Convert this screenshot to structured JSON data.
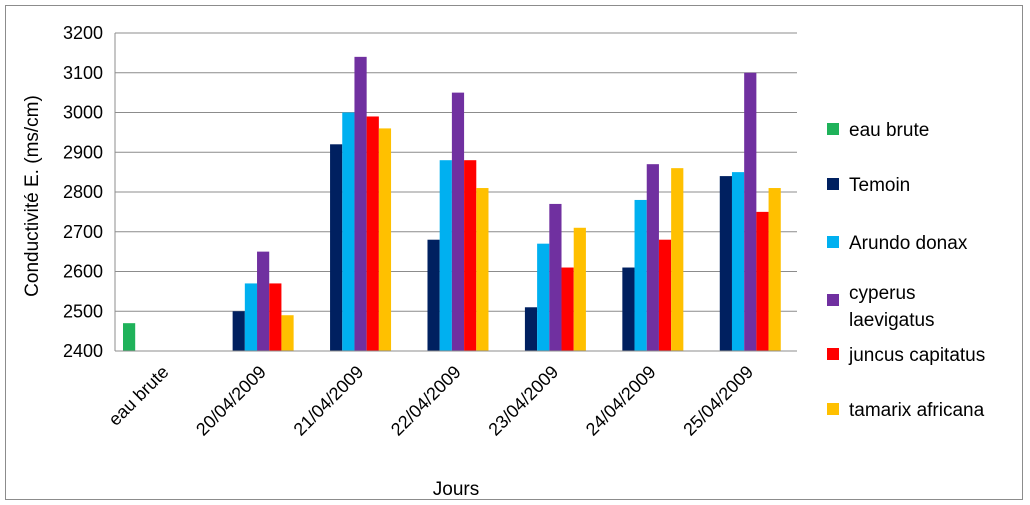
{
  "chart_data": {
    "type": "bar",
    "title": "",
    "xlabel": "Jours",
    "ylabel": "Conductivité E. (ms/cm)",
    "ylim": [
      2400,
      3200
    ],
    "ytick_step": 100,
    "grid": true,
    "legend_position": "right",
    "categories": [
      "eau brute",
      "20/04/2009",
      "21/04/2009",
      "22/04/2009",
      "23/04/2009",
      "24/04/2009",
      "25/04/2009"
    ],
    "series": [
      {
        "name": "eau brute",
        "color": "#1fb25a",
        "values": [
          2470,
          null,
          null,
          null,
          null,
          null,
          null
        ]
      },
      {
        "name": "Temoin",
        "color": "#002060",
        "values": [
          null,
          2500,
          2920,
          2680,
          2510,
          2610,
          2840
        ]
      },
      {
        "name": "Arundo donax",
        "color": "#00b0f0",
        "values": [
          null,
          2570,
          3000,
          2880,
          2670,
          2780,
          2850
        ]
      },
      {
        "name": "cyperus laevigatus",
        "color": "#7030a0",
        "values": [
          null,
          2650,
          3140,
          3050,
          2770,
          2870,
          3100
        ]
      },
      {
        "name": "juncus capitatus",
        "color": "#ff0000",
        "values": [
          null,
          2570,
          2990,
          2880,
          2610,
          2680,
          2750
        ]
      },
      {
        "name": "tamarix africana",
        "color": "#ffc000",
        "values": [
          null,
          2490,
          2960,
          2810,
          2710,
          2860,
          2810
        ]
      }
    ]
  }
}
